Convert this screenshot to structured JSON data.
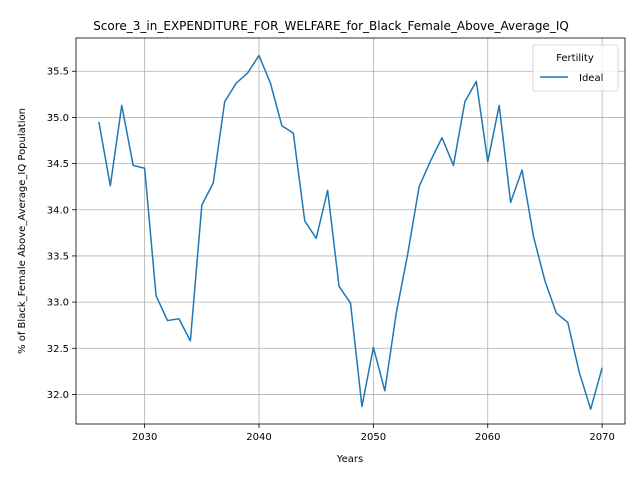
{
  "chart_data": {
    "type": "line",
    "title": "Score_3_in_EXPENDITURE_FOR_WELFARE_for_Black_Female_Above_Average_IQ",
    "xlabel": "Years",
    "ylabel": "% of Black_Female Above_Average_IQ Population",
    "xlim": [
      2024,
      2072
    ],
    "ylim": [
      31.68,
      35.86
    ],
    "xticks": [
      2030,
      2040,
      2050,
      2060,
      2070
    ],
    "yticks": [
      32.0,
      32.5,
      33.0,
      33.5,
      34.0,
      34.5,
      35.0,
      35.5
    ],
    "grid": true,
    "legend": {
      "title": "Fertility",
      "placement": "upper right"
    },
    "x": [
      2026,
      2027,
      2028,
      2029,
      2030,
      2031,
      2032,
      2033,
      2034,
      2035,
      2036,
      2037,
      2038,
      2039,
      2040,
      2041,
      2042,
      2043,
      2044,
      2045,
      2046,
      2047,
      2048,
      2049,
      2050,
      2051,
      2052,
      2053,
      2054,
      2055,
      2056,
      2057,
      2058,
      2059,
      2060,
      2061,
      2062,
      2063,
      2064,
      2065,
      2066,
      2067,
      2068,
      2069,
      2070
    ],
    "series": [
      {
        "name": "Ideal",
        "color": "#1f77b4",
        "values": [
          34.95,
          34.26,
          35.13,
          34.48,
          34.45,
          33.07,
          32.8,
          32.82,
          32.58,
          34.05,
          34.29,
          35.17,
          35.37,
          35.48,
          35.67,
          35.37,
          34.91,
          34.83,
          33.88,
          33.69,
          34.21,
          33.17,
          32.99,
          31.87,
          32.51,
          32.04,
          32.88,
          33.52,
          34.25,
          34.53,
          34.78,
          34.48,
          35.17,
          35.39,
          34.52,
          35.13,
          34.08,
          34.43,
          33.71,
          33.23,
          32.88,
          32.78,
          32.24,
          31.84,
          32.29
        ]
      }
    ]
  }
}
